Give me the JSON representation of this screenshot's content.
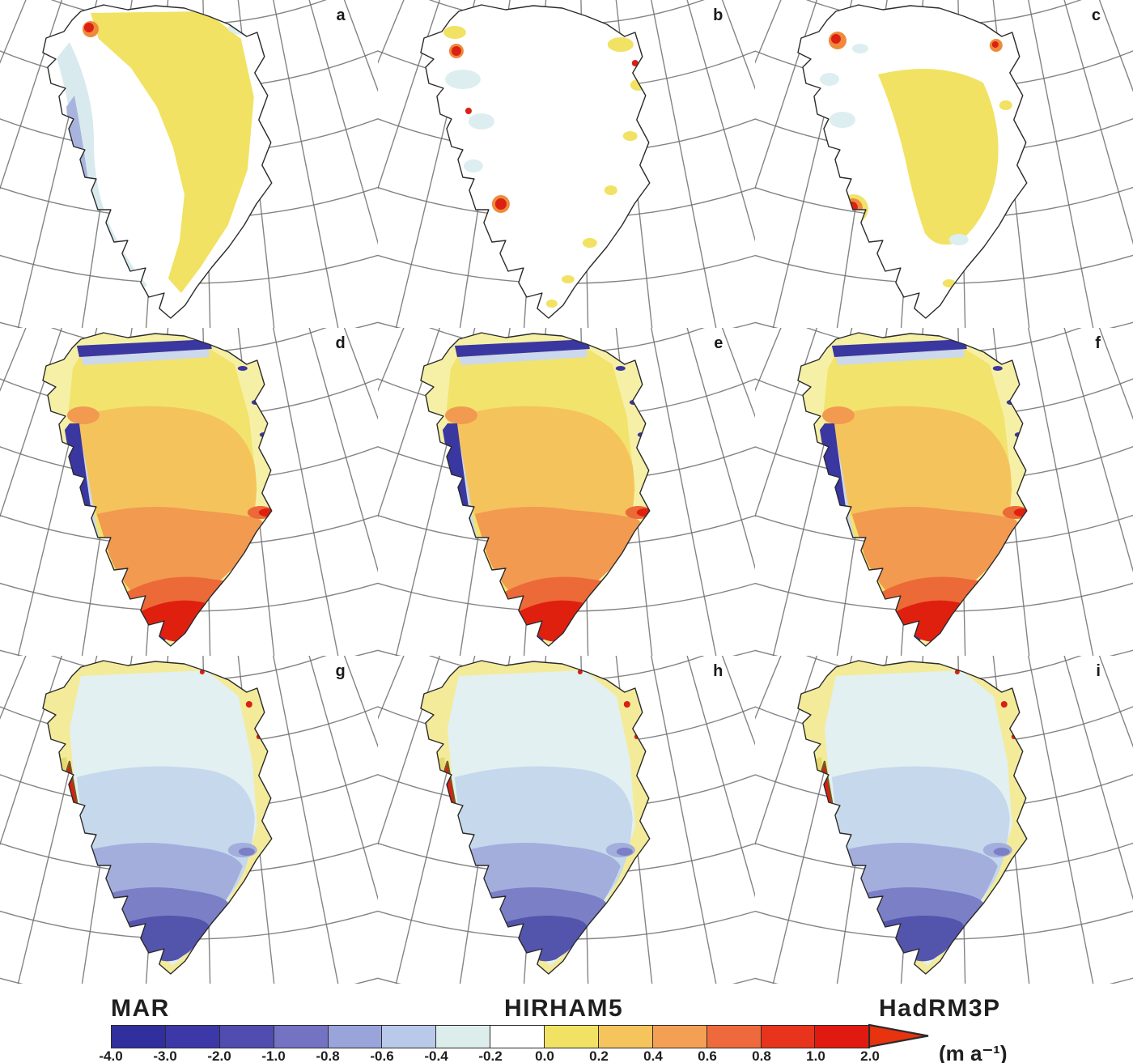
{
  "figure": {
    "background": "#ffffff",
    "panels": [
      {
        "label": "a",
        "model": "MAR",
        "row": "top"
      },
      {
        "label": "b",
        "model": "HIRHAM5",
        "row": "top"
      },
      {
        "label": "c",
        "model": "HadRM3P",
        "row": "top"
      },
      {
        "label": "d",
        "model": "MAR",
        "row": "middle"
      },
      {
        "label": "e",
        "model": "HIRHAM5",
        "row": "middle"
      },
      {
        "label": "f",
        "model": "HadRM3P",
        "row": "middle"
      },
      {
        "label": "g",
        "model": "MAR",
        "row": "bottom"
      },
      {
        "label": "h",
        "model": "HIRHAM5",
        "row": "bottom"
      },
      {
        "label": "i",
        "model": "HadRM3P",
        "row": "bottom"
      }
    ],
    "model_labels": [
      {
        "text": "MAR"
      },
      {
        "text": "HIRHAM5"
      },
      {
        "text": "HadRM3P"
      }
    ],
    "colorbar": {
      "unit": "(m a⁻¹)",
      "ticks": [
        "-4.0",
        "-3.0",
        "-2.0",
        "-1.0",
        "-0.8",
        "-0.6",
        "-0.4",
        "-0.2",
        "0.0",
        "0.2",
        "0.4",
        "0.6",
        "0.8",
        "1.0",
        "2.0"
      ],
      "segments": [
        "#312f9e",
        "#3c38a8",
        "#504cb0",
        "#7472c2",
        "#98a4da",
        "#b9c9ea",
        "#dcedeb",
        "#ffffff",
        "#f1e263",
        "#f5c45c",
        "#f4a054",
        "#ee6a3c",
        "#e8341c",
        "#e01a10"
      ],
      "arrow_color": "#e8330f",
      "outline_color": "#2b2b2b"
    },
    "map_colors": {
      "graticule": "#6e6e6e",
      "coast": "#2a2a2a",
      "row_top": {
        "interior_yellow": "#f1e263",
        "pale_cyan": "#d9eaee",
        "pale_patch": "#ddeef0",
        "periwinkle": "#a9b4de",
        "purple": "#6a6cba",
        "red": "#dc2113",
        "orange": "#ee8a3a",
        "yellow_halo": "#f0e26a"
      },
      "row_mid": {
        "margin": "#f6f0a6",
        "yellow": "#f2e36c",
        "amber": "#f5c35c",
        "orange": "#f19a50",
        "red_orange": "#ec6a38",
        "red": "#e0200f",
        "navy": "#3b37a0",
        "light_band": "#ccd8ec"
      },
      "row_bot": {
        "margin": "#f3eb9a",
        "palest": "#e2f0f2",
        "light_blue": "#c5d8ec",
        "periwinkle": "#a3aedd",
        "purple": "#7a7fc6",
        "deep_purple": "#5355ac",
        "red": "#d92012",
        "olive_edge": "#6b5a26",
        "yellow_edge": "#e8d870"
      }
    }
  }
}
